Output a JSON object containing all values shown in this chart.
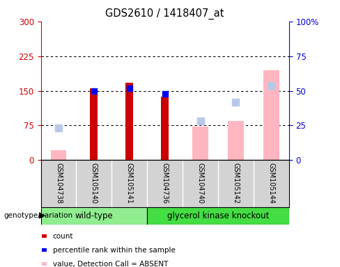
{
  "title": "GDS2610 / 1418407_at",
  "samples": [
    "GSM104738",
    "GSM105140",
    "GSM105141",
    "GSM104736",
    "GSM104740",
    "GSM105142",
    "GSM105144"
  ],
  "count_values": [
    null,
    155,
    168,
    138,
    null,
    null,
    null
  ],
  "percentile_rank": [
    null,
    50,
    52,
    48,
    null,
    null,
    null
  ],
  "value_absent": [
    22,
    null,
    null,
    null,
    73,
    85,
    195
  ],
  "rank_absent": [
    23,
    null,
    null,
    null,
    28,
    42,
    54
  ],
  "left_yaxis_color": "#CC0000",
  "right_yaxis_color": "#0000CC",
  "left_ylim": [
    0,
    300
  ],
  "right_ylim": [
    0,
    100
  ],
  "left_yticks": [
    0,
    75,
    150,
    225,
    300
  ],
  "right_yticks": [
    0,
    25,
    50,
    75,
    100
  ],
  "count_color": "#CC0000",
  "percentile_color": "#0000EE",
  "value_absent_color": "#FFB6C1",
  "rank_absent_color": "#B8C8E8",
  "background_color": "#FFFFFF",
  "wt_color": "#90EE90",
  "gk_color": "#44DD44",
  "grid_dotted": [
    75,
    150,
    225
  ]
}
